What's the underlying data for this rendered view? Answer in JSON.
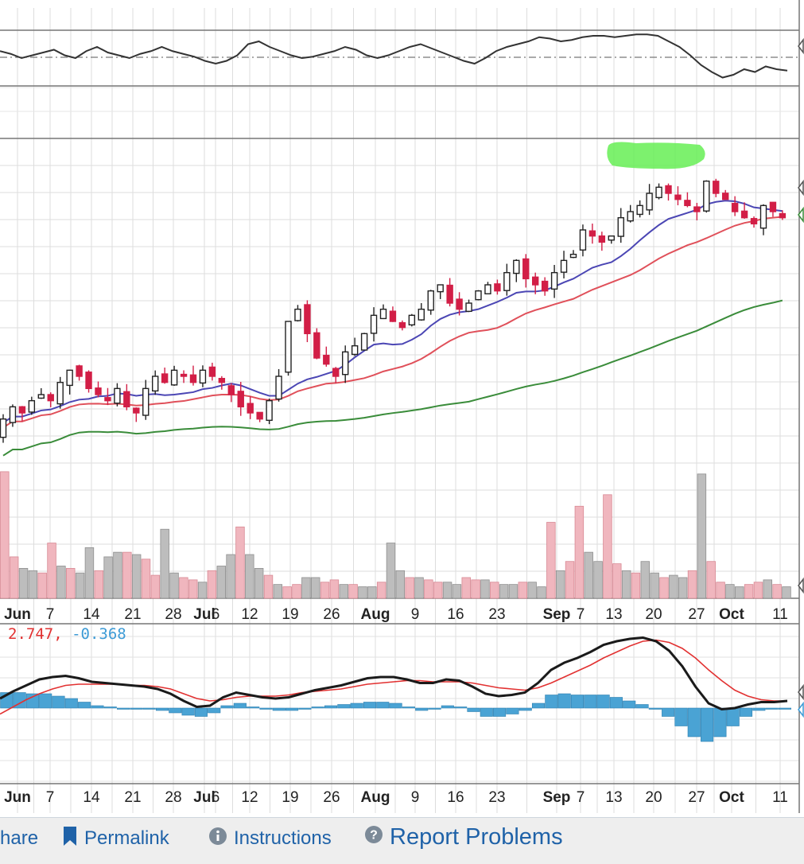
{
  "chart_data": [
    {
      "panel": "momentum-indicator",
      "type": "line",
      "series": [
        {
          "values": [
            55,
            53,
            50,
            52,
            54,
            56,
            52,
            50,
            55,
            58,
            54,
            52,
            50,
            53,
            55,
            58,
            55,
            53,
            51,
            48,
            46,
            48,
            52,
            60,
            62,
            58,
            55,
            52,
            50,
            51,
            53,
            55,
            58,
            56,
            52,
            50,
            52,
            55,
            58,
            60,
            57,
            54,
            51,
            48,
            46,
            50,
            55,
            58,
            60,
            62,
            65,
            64,
            62,
            63,
            65,
            66,
            66,
            65,
            66,
            67,
            67,
            66,
            62,
            58,
            52,
            45,
            40,
            36,
            38,
            42,
            40,
            44,
            42,
            41
          ]
        }
      ]
    },
    {
      "panel": "price",
      "type": "candlestick",
      "x_tick_labels": [
        "Jun",
        "7",
        "14",
        "21",
        "28",
        "Jul",
        "6",
        "12",
        "19",
        "26",
        "Aug",
        "9",
        "16",
        "23",
        "Sep",
        "7",
        "13",
        "20",
        "27",
        "Oct",
        "11"
      ],
      "colors": {
        "up": "#222222",
        "down": "#d21e46",
        "sma_fast": "#4b46b4",
        "sma_mid": "#e0505a",
        "sma_slow": "#3a8c3a",
        "highlight": "#66ee55"
      },
      "close": [
        100,
        102,
        101,
        103,
        104,
        103,
        106,
        108,
        107,
        105,
        104,
        103,
        105,
        102,
        101,
        105,
        107,
        106,
        108,
        107,
        106,
        108,
        107,
        106,
        104,
        102,
        101,
        100,
        103,
        107,
        116,
        118,
        114,
        110,
        109,
        107,
        111,
        112,
        114,
        117,
        118,
        116,
        115,
        117,
        118,
        121,
        122,
        119,
        118,
        119,
        121,
        122,
        121,
        124,
        126,
        123,
        122,
        121,
        124,
        126,
        127,
        131,
        130,
        129,
        130,
        133,
        134,
        135,
        137,
        138,
        137,
        136,
        135,
        134,
        139,
        137,
        136,
        134,
        133,
        132,
        135,
        134,
        133
      ]
    },
    {
      "panel": "volume",
      "type": "bar",
      "values": [
        5.5,
        1.8,
        1.3,
        1.2,
        1.1,
        2.4,
        1.4,
        1.3,
        1.1,
        2.2,
        1.2,
        1.8,
        2.0,
        2.0,
        1.9,
        1.7,
        1.0,
        3.0,
        1.1,
        0.9,
        0.8,
        0.7,
        1.2,
        1.4,
        1.9,
        3.1,
        1.9,
        1.3,
        1.0,
        0.6,
        0.5,
        0.6,
        0.9,
        0.9,
        0.7,
        0.8,
        0.6,
        0.6,
        0.5,
        0.5,
        0.7,
        2.4,
        1.2,
        0.9,
        0.9,
        0.8,
        0.7,
        0.7,
        0.6,
        0.9,
        0.8,
        0.8,
        0.7,
        0.6,
        0.6,
        0.7,
        0.7,
        0.5,
        3.3,
        1.2,
        1.6,
        4.0,
        2.0,
        1.6,
        4.5,
        1.5,
        1.2,
        1.1,
        1.6,
        1.1,
        0.9,
        1.0,
        0.9,
        1.2,
        5.4,
        1.6,
        0.7,
        0.6,
        0.5,
        0.6,
        0.7,
        0.8,
        0.6,
        0.5
      ]
    },
    {
      "panel": "macd",
      "type": "line",
      "legend": [
        {
          "text": "2.747",
          "color": "#e23131"
        },
        {
          "text": ", ",
          "color": "#e23131"
        },
        {
          "text": "-0.368",
          "color": "#3d9bd6"
        }
      ],
      "macd": [
        0.8,
        1.4,
        1.9,
        2.4,
        2.6,
        2.7,
        2.5,
        2.2,
        2.1,
        2.0,
        1.9,
        1.8,
        1.6,
        1.2,
        0.6,
        0.1,
        0.2,
        0.9,
        1.3,
        1.1,
        0.9,
        0.8,
        0.9,
        1.2,
        1.5,
        1.7,
        1.9,
        2.2,
        2.5,
        2.6,
        2.6,
        2.4,
        2.1,
        2.1,
        2.4,
        2.3,
        1.8,
        1.2,
        1.0,
        1.1,
        1.3,
        2.1,
        3.2,
        3.8,
        4.2,
        4.7,
        5.3,
        5.6,
        5.8,
        5.9,
        5.6,
        4.8,
        3.5,
        1.8,
        0.4,
        -0.1,
        0.0,
        0.3,
        0.5,
        0.5,
        0.6
      ],
      "signal": [
        -0.5,
        0.1,
        0.7,
        1.2,
        1.6,
        1.9,
        2.0,
        2.0,
        2.0,
        2.0,
        1.9,
        1.9,
        1.8,
        1.6,
        1.2,
        0.8,
        0.6,
        0.7,
        0.9,
        1.0,
        1.0,
        1.0,
        1.1,
        1.3,
        1.4,
        1.5,
        1.6,
        1.8,
        2.0,
        2.1,
        2.2,
        2.3,
        2.3,
        2.2,
        2.2,
        2.2,
        2.1,
        1.9,
        1.7,
        1.6,
        1.5,
        1.7,
        2.1,
        2.6,
        3.1,
        3.6,
        4.2,
        4.7,
        5.2,
        5.6,
        5.7,
        5.5,
        5.0,
        4.2,
        3.2,
        2.3,
        1.5,
        1.0,
        0.7,
        0.6,
        0.6
      ],
      "histogram": [
        1.3,
        1.3,
        1.2,
        1.2,
        1.0,
        0.8,
        0.5,
        0.2,
        0.1,
        0.0,
        0.0,
        -0.1,
        -0.2,
        -0.4,
        -0.6,
        -0.7,
        -0.4,
        0.2,
        0.4,
        0.1,
        -0.1,
        -0.2,
        -0.2,
        -0.1,
        0.1,
        0.2,
        0.3,
        0.4,
        0.5,
        0.5,
        0.4,
        0.1,
        -0.2,
        -0.1,
        0.2,
        0.1,
        -0.3,
        -0.7,
        -0.7,
        -0.5,
        -0.2,
        0.4,
        1.1,
        1.2,
        1.1,
        1.1,
        1.1,
        0.9,
        0.6,
        0.3,
        -0.1,
        -0.7,
        -1.5,
        -2.4,
        -2.8,
        -2.4,
        -1.5,
        -0.7,
        -0.2,
        -0.1,
        0.0
      ]
    }
  ],
  "footer": {
    "share_label": "hare",
    "permalink_label": "Permalink",
    "instructions_label": "Instructions",
    "report_label": "Report Problems"
  }
}
